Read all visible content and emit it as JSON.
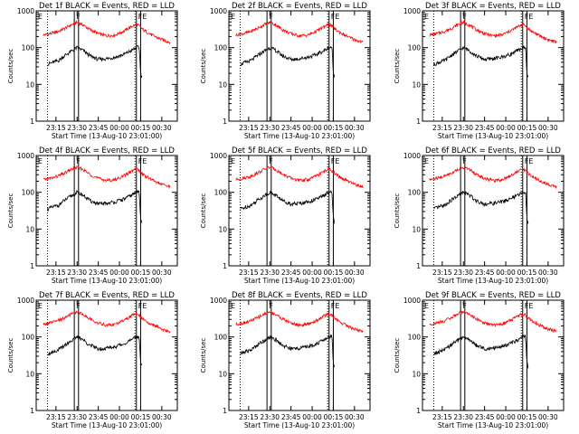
{
  "chart_data": [
    {
      "type": "line",
      "title": "Det 1f BLACK = Events, RED = LLD"
    },
    {
      "type": "line",
      "title": "Det 2f BLACK = Events, RED = LLD"
    },
    {
      "type": "line",
      "title": "Det 3f BLACK = Events, RED = LLD"
    },
    {
      "type": "line",
      "title": "Det 4f BLACK = Events, RED = LLD"
    },
    {
      "type": "line",
      "title": "Det 5f BLACK = Events, RED = LLD"
    },
    {
      "type": "line",
      "title": "Det 6f BLACK = Events, RED = LLD"
    },
    {
      "type": "line",
      "title": "Det 7f BLACK = Events, RED = LLD"
    },
    {
      "type": "line",
      "title": "Det 8f BLACK = Events, RED = LLD"
    },
    {
      "type": "line",
      "title": "Det 9f BLACK = Events, RED = LLD"
    }
  ],
  "common": {
    "xlabel": "Start Time (13-Aug-10 23:01:00)",
    "ylabel": "Counts/sec",
    "x_tick_labels": [
      "23:15",
      "23:30",
      "23:45",
      "00:00",
      "00:15",
      "00:30"
    ],
    "y_tick_labels": [
      "1",
      "10",
      "100",
      "1000"
    ],
    "yscale": "log",
    "ylim": [
      1,
      1000
    ],
    "x_minutes_range": [
      0,
      100
    ],
    "x_ticks_minutes": [
      14,
      29,
      44,
      59,
      74,
      89
    ],
    "vlines_dotted_minutes": [
      8,
      70
    ],
    "band_F_minutes": [
      27,
      30
    ],
    "band_FE_minutes": [
      71,
      74
    ],
    "markers": {
      "E_left": "E",
      "F": "F",
      "FE": "FE"
    },
    "series": [
      {
        "name": "LLD",
        "color": "#ff0000",
        "x_minutes": [
          5,
          10,
          15,
          20,
          25,
          29,
          33,
          38,
          44,
          50,
          56,
          62,
          68,
          71,
          73,
          76,
          82,
          88,
          95
        ],
        "y": [
          220,
          240,
          270,
          330,
          420,
          480,
          420,
          310,
          240,
          210,
          220,
          280,
          380,
          430,
          390,
          300,
          220,
          170,
          140
        ]
      },
      {
        "name": "Events",
        "color": "#000000",
        "x_minutes": [
          8,
          12,
          16,
          20,
          25,
          29,
          33,
          38,
          44,
          50,
          56,
          62,
          68,
          71,
          73,
          74,
          75
        ],
        "y": [
          35,
          40,
          45,
          60,
          80,
          100,
          85,
          60,
          48,
          50,
          55,
          65,
          85,
          100,
          105,
          20,
          15
        ]
      }
    ]
  }
}
